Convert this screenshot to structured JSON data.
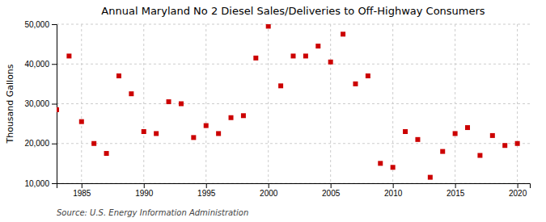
{
  "chart_data": {
    "type": "scatter",
    "title": "Annual Maryland No 2 Diesel Sales/Deliveries to Off-Highway Consumers",
    "ylabel": "Thousand Gallons",
    "source": "Source: U.S. Energy Information Administration",
    "x": [
      1983,
      1984,
      1985,
      1986,
      1987,
      1988,
      1989,
      1990,
      1991,
      1992,
      1993,
      1994,
      1995,
      1996,
      1997,
      1998,
      1999,
      2000,
      2001,
      2002,
      2003,
      2004,
      2005,
      2006,
      2007,
      2008,
      2009,
      2010,
      2011,
      2012,
      2013,
      2014,
      2015,
      2016,
      2017,
      2018,
      2019,
      2020
    ],
    "values": [
      28500,
      42000,
      25500,
      20000,
      17500,
      37000,
      32500,
      23000,
      22500,
      30500,
      30000,
      21500,
      24500,
      22500,
      26500,
      27000,
      41500,
      49500,
      34500,
      42000,
      42000,
      44500,
      40500,
      47500,
      35000,
      37000,
      15000,
      14000,
      23000,
      21000,
      11500,
      18000,
      22500,
      24000,
      17000,
      22000,
      19500,
      20000
    ],
    "color": "#cc0000",
    "marker": "square",
    "xlim": [
      1983,
      2021
    ],
    "ylim": [
      10000,
      50000
    ],
    "xticks": [
      1985,
      1990,
      1995,
      2000,
      2005,
      2010,
      2015,
      2020
    ],
    "yticks": [
      {
        "value": 10000,
        "label": "10,000"
      },
      {
        "value": 20000,
        "label": "20,000"
      },
      {
        "value": 30000,
        "label": "30,000"
      },
      {
        "value": 40000,
        "label": "40,000"
      },
      {
        "value": 50000,
        "label": "50,000"
      }
    ],
    "grid": true
  }
}
